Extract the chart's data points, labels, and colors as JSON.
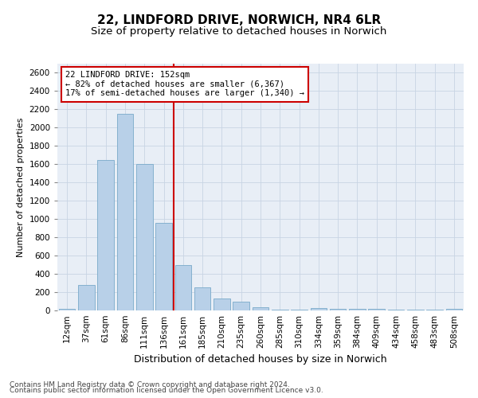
{
  "title1": "22, LINDFORD DRIVE, NORWICH, NR4 6LR",
  "title2": "Size of property relative to detached houses in Norwich",
  "xlabel": "Distribution of detached houses by size in Norwich",
  "ylabel": "Number of detached properties",
  "categories": [
    "12sqm",
    "37sqm",
    "61sqm",
    "86sqm",
    "111sqm",
    "136sqm",
    "161sqm",
    "185sqm",
    "210sqm",
    "235sqm",
    "260sqm",
    "285sqm",
    "310sqm",
    "334sqm",
    "359sqm",
    "384sqm",
    "409sqm",
    "434sqm",
    "458sqm",
    "483sqm",
    "508sqm"
  ],
  "values": [
    20,
    280,
    1650,
    2150,
    1600,
    960,
    500,
    250,
    130,
    100,
    35,
    10,
    5,
    30,
    15,
    15,
    20,
    5,
    5,
    5,
    20
  ],
  "bar_color": "#b8d0e8",
  "bar_edge_color": "#7aaaca",
  "vline_index": 5.5,
  "vline_color": "#cc0000",
  "annotation_box_color": "#cc0000",
  "annotation_label": "22 LINDFORD DRIVE: 152sqm",
  "annotation_line1": "← 82% of detached houses are smaller (6,367)",
  "annotation_line2": "17% of semi-detached houses are larger (1,340) →",
  "grid_color": "#c8d4e4",
  "background_color": "#e8eef6",
  "ylim": [
    0,
    2700
  ],
  "yticks": [
    0,
    200,
    400,
    600,
    800,
    1000,
    1200,
    1400,
    1600,
    1800,
    2000,
    2200,
    2400,
    2600
  ],
  "footer1": "Contains HM Land Registry data © Crown copyright and database right 2024.",
  "footer2": "Contains public sector information licensed under the Open Government Licence v3.0.",
  "title1_fontsize": 11,
  "title2_fontsize": 9.5,
  "xlabel_fontsize": 9,
  "ylabel_fontsize": 8,
  "tick_fontsize": 7.5,
  "annot_fontsize": 7.5,
  "footer_fontsize": 6.5
}
